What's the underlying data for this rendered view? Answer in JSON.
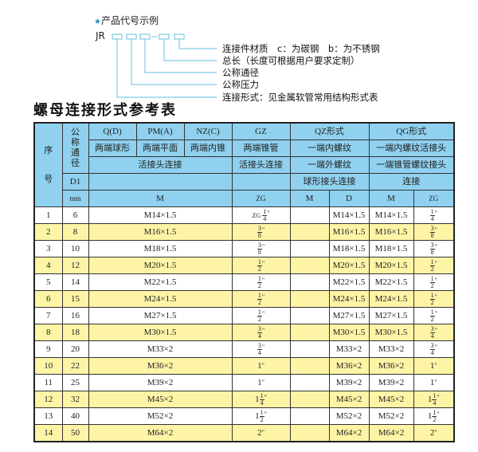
{
  "code_example": {
    "heading": "产品代号示例",
    "prefix": "JR",
    "separator": "-",
    "labels": [
      "连接件材质　c：为碳钢　b：为不锈钢",
      "总长（长度可根据用户要求定制）",
      "公称通径",
      "公称压力",
      "连接形式：见金属软管常用结构形式表"
    ],
    "line_color": "#7fcbe6"
  },
  "title": "螺母连接形式参考表",
  "colors": {
    "header": "#8fd1ef",
    "stripe": "#fdf4a6"
  },
  "table": {
    "header": {
      "seq": "序号",
      "nominal": "公称通径",
      "r1": [
        "Q(D)",
        "PM(A)",
        "NZ(C)",
        "GZ",
        "QZ形式",
        "QG形式"
      ],
      "r2": [
        "两端球形",
        "两端平面",
        "两端内锥",
        "两端锥管",
        "一端内螺纹",
        "一端内螺纹活接头"
      ],
      "r3": [
        "活接头连接",
        "活接头连接",
        "一端外螺纹",
        "一端锥管螺纹接头"
      ],
      "r4": [
        "D1",
        "",
        "",
        "球形接头连接",
        "连接"
      ],
      "r5": [
        "mm",
        "M",
        "ZG",
        "M",
        "D",
        "M",
        "ZG"
      ]
    },
    "rows": [
      {
        "n": "1",
        "d": "6",
        "m": "M14×1.5",
        "zg": {
          "pre": "ZG ",
          "whole": "",
          "num": "1",
          "den": "4"
        },
        "qzm": "",
        "qzd": "M14×1.5",
        "qgm": "M14×1.5",
        "qgzg": {
          "whole": "",
          "num": "1",
          "den": "4"
        }
      },
      {
        "n": "2",
        "d": "8",
        "m": "M16×1.5",
        "zg": {
          "pre": "",
          "whole": "",
          "num": "3",
          "den": "8"
        },
        "qzm": "",
        "qzd": "M16×1.5",
        "qgm": "M16×1.5",
        "qgzg": {
          "whole": "",
          "num": "3",
          "den": "8"
        }
      },
      {
        "n": "3",
        "d": "10",
        "m": "M18×1.5",
        "zg": {
          "pre": "",
          "whole": "",
          "num": "3",
          "den": "8"
        },
        "qzm": "",
        "qzd": "M18×1.5",
        "qgm": "M18×1.5",
        "qgzg": {
          "whole": "",
          "num": "3",
          "den": "8"
        }
      },
      {
        "n": "4",
        "d": "12",
        "m": "M20×1.5",
        "zg": {
          "pre": "",
          "whole": "",
          "num": "1",
          "den": "2"
        },
        "qzm": "",
        "qzd": "M20×1.5",
        "qgm": "M20×1.5",
        "qgzg": {
          "whole": "",
          "num": "1",
          "den": "2"
        }
      },
      {
        "n": "5",
        "d": "14",
        "m": "M22×1.5",
        "zg": {
          "pre": "",
          "whole": "",
          "num": "1",
          "den": "2"
        },
        "qzm": "",
        "qzd": "M22×1.5",
        "qgm": "M22×1.5",
        "qgzg": {
          "whole": "",
          "num": "1",
          "den": "2"
        }
      },
      {
        "n": "6",
        "d": "15",
        "m": "M24×1.5",
        "zg": {
          "pre": "",
          "whole": "",
          "num": "1",
          "den": "2"
        },
        "qzm": "",
        "qzd": "M24×1.5",
        "qgm": "M24×1.5",
        "qgzg": {
          "whole": "",
          "num": "1",
          "den": "2"
        }
      },
      {
        "n": "7",
        "d": "16",
        "m": "M27×1.5",
        "zg": {
          "pre": "",
          "whole": "",
          "num": "1",
          "den": "2"
        },
        "qzm": "",
        "qzd": "M27×1.5",
        "qgm": "M27×1.5",
        "qgzg": {
          "whole": "",
          "num": "1",
          "den": "2"
        }
      },
      {
        "n": "8",
        "d": "18",
        "m": "M30×1.5",
        "zg": {
          "pre": "",
          "whole": "",
          "num": "3",
          "den": "4"
        },
        "qzm": "",
        "qzd": "M30×1.5",
        "qgm": "M30×1.5",
        "qgzg": {
          "whole": "",
          "num": "3",
          "den": "4"
        }
      },
      {
        "n": "9",
        "d": "20",
        "m": "M33×2",
        "zg": {
          "pre": "",
          "whole": "",
          "num": "3",
          "den": "4"
        },
        "qzm": "",
        "qzd": "M33×2",
        "qgm": "M33×2",
        "qgzg": {
          "whole": "",
          "num": "3",
          "den": "4"
        }
      },
      {
        "n": "10",
        "d": "22",
        "m": "M36×2",
        "zg": {
          "pre": "",
          "whole": "1",
          "num": "",
          "den": ""
        },
        "qzm": "",
        "qzd": "M36×2",
        "qgm": "M36×2",
        "qgzg": {
          "whole": "1",
          "num": "",
          "den": ""
        }
      },
      {
        "n": "11",
        "d": "25",
        "m": "M39×2",
        "zg": {
          "pre": "",
          "whole": "1",
          "num": "",
          "den": ""
        },
        "qzm": "",
        "qzd": "M39×2",
        "qgm": "M39×2",
        "qgzg": {
          "whole": "1",
          "num": "",
          "den": ""
        }
      },
      {
        "n": "12",
        "d": "32",
        "m": "M45×2",
        "zg": {
          "pre": "",
          "whole": "1",
          "num": "1",
          "den": "4"
        },
        "qzm": "",
        "qzd": "M45×2",
        "qgm": "M45×2",
        "qgzg": {
          "whole": "1",
          "num": "1",
          "den": "4"
        }
      },
      {
        "n": "13",
        "d": "40",
        "m": "M52×2",
        "zg": {
          "pre": "",
          "whole": "1",
          "num": "1",
          "den": "2"
        },
        "qzm": "",
        "qzd": "M52×2",
        "qgm": "M52×2",
        "qgzg": {
          "whole": "1",
          "num": "1",
          "den": "2"
        }
      },
      {
        "n": "14",
        "d": "50",
        "m": "M64×2",
        "zg": {
          "pre": "",
          "whole": "2",
          "num": "",
          "den": ""
        },
        "qzm": "",
        "qzd": "M64×2",
        "qgm": "M64×2",
        "qgzg": {
          "whole": "2",
          "num": "",
          "den": ""
        }
      }
    ],
    "inch_mark": "\""
  }
}
